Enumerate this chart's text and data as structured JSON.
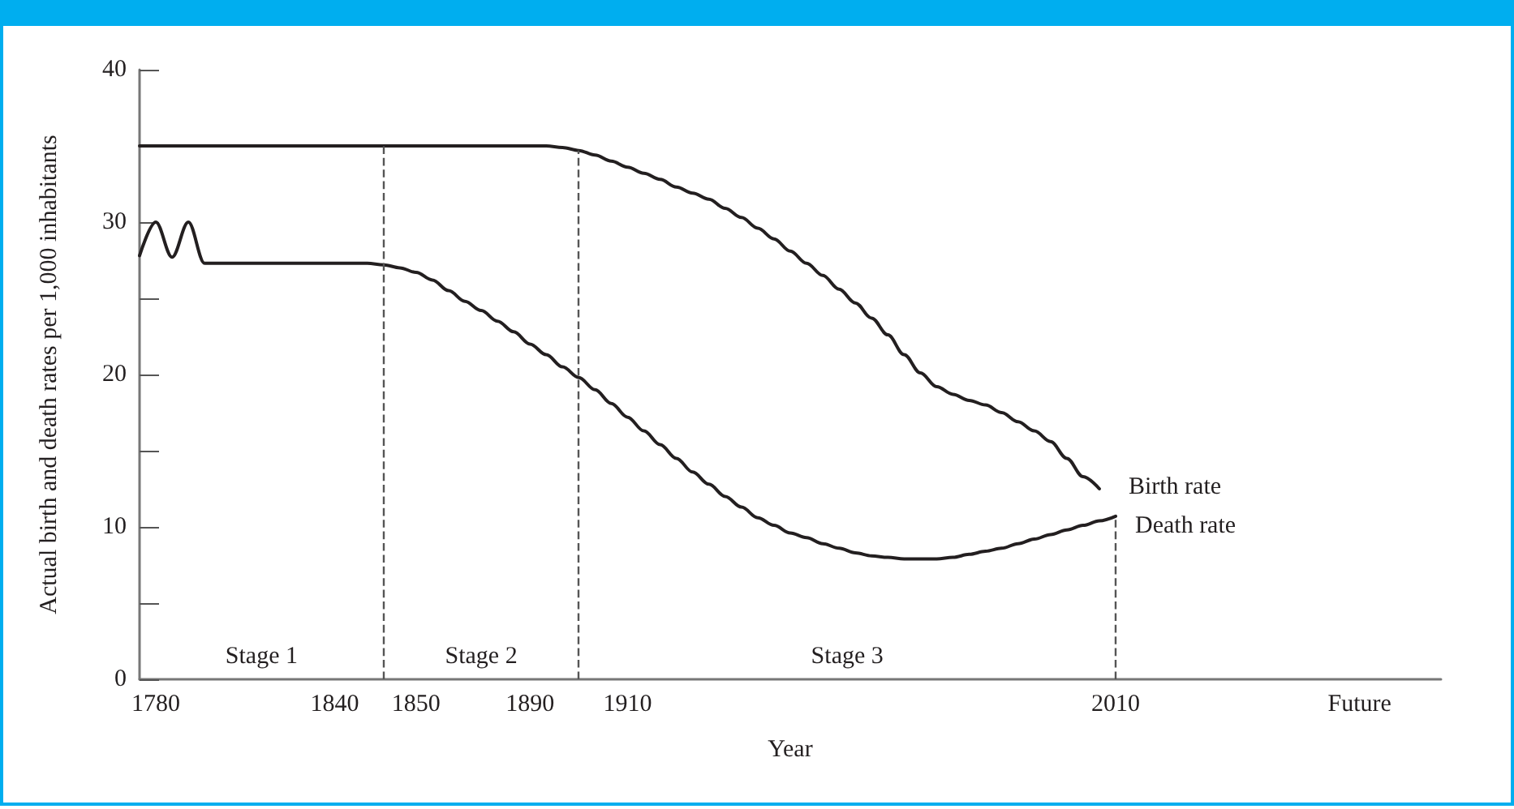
{
  "chart_data": {
    "type": "line",
    "categories": [
      null,
      "1780",
      null,
      null,
      null,
      null,
      null,
      null,
      null,
      null,
      null,
      null,
      "1840",
      null,
      null,
      null,
      null,
      "1850",
      null,
      null,
      null,
      null,
      null,
      null,
      "1890",
      null,
      null,
      null,
      null,
      null,
      "1910",
      null,
      null,
      null,
      null,
      null,
      null,
      null,
      null,
      null,
      null,
      null,
      null,
      null,
      null,
      null,
      null,
      null,
      null,
      null,
      null,
      null,
      null,
      null,
      null,
      null,
      null,
      null,
      null,
      null,
      "2010",
      null,
      null,
      null,
      null,
      null,
      null,
      null,
      null,
      null,
      null,
      null,
      null,
      null,
      null,
      "Future",
      null,
      null,
      null,
      null,
      null
    ],
    "series": [
      {
        "name": "Birth rate",
        "color": "#231f20",
        "values": [
          35,
          35,
          35,
          35,
          35,
          35,
          35,
          35,
          35,
          35,
          35,
          35,
          35,
          35,
          35,
          35,
          35,
          35,
          35,
          35,
          35,
          35,
          35,
          35,
          35,
          35,
          34.9,
          34.7,
          34.4,
          34.0,
          33.6,
          33.2,
          32.8,
          32.3,
          31.9,
          31.5,
          30.9,
          30.3,
          29.6,
          28.9,
          28.1,
          27.3,
          26.5,
          25.6,
          24.7,
          23.7,
          22.6,
          21.3,
          20.1,
          19.2,
          18.7,
          18.3,
          18.0,
          17.5,
          16.9,
          16.3,
          15.6,
          14.5,
          13.3,
          12.5,
          null,
          null,
          null,
          null,
          null,
          null,
          null,
          null,
          null,
          null,
          null,
          null,
          null,
          null,
          null,
          null,
          null,
          null,
          null,
          null,
          null
        ]
      },
      {
        "name": "Death rate",
        "color": "#231f20",
        "values": [
          27.8,
          30,
          27.7,
          30,
          27.3,
          27.3,
          27.3,
          27.3,
          27.3,
          27.3,
          27.3,
          27.3,
          27.3,
          27.3,
          27.3,
          27.2,
          27.0,
          26.7,
          26.2,
          25.5,
          24.8,
          24.2,
          23.5,
          22.8,
          22.0,
          21.3,
          20.5,
          19.8,
          19.0,
          18.1,
          17.2,
          16.3,
          15.4,
          14.5,
          13.6,
          12.8,
          12.0,
          11.3,
          10.6,
          10.1,
          9.6,
          9.3,
          8.9,
          8.6,
          8.3,
          8.1,
          8.0,
          7.9,
          7.9,
          7.9,
          8.0,
          8.2,
          8.4,
          8.6,
          8.9,
          9.2,
          9.5,
          9.8,
          10.1,
          10.4,
          10.7,
          null,
          null,
          null,
          null,
          null,
          null,
          null,
          null,
          null,
          null,
          null,
          null,
          null,
          null,
          null,
          null,
          null,
          null,
          null,
          null
        ]
      }
    ],
    "xlabel": "Year",
    "ylabel": "Actual birth and death rates per 1,000 inhabitants",
    "ylim": [
      0,
      40
    ],
    "yticks": [
      0,
      {
        "value": 5,
        "label": null
      },
      10,
      {
        "value": 15,
        "label": null
      },
      20,
      {
        "value": 25,
        "label": null
      },
      30,
      {
        "value": 35,
        "label": null
      },
      40
    ],
    "ref_lines": [
      {
        "axis": "x",
        "value": "2010",
        "line_style": "dashed",
        "color": "#555555"
      }
    ],
    "annotations": [
      "Stage 1",
      "Stage 2",
      "Stage 3"
    ],
    "grid": false,
    "legend": false,
    "marker": "none",
    "line_style": "solid"
  }
}
